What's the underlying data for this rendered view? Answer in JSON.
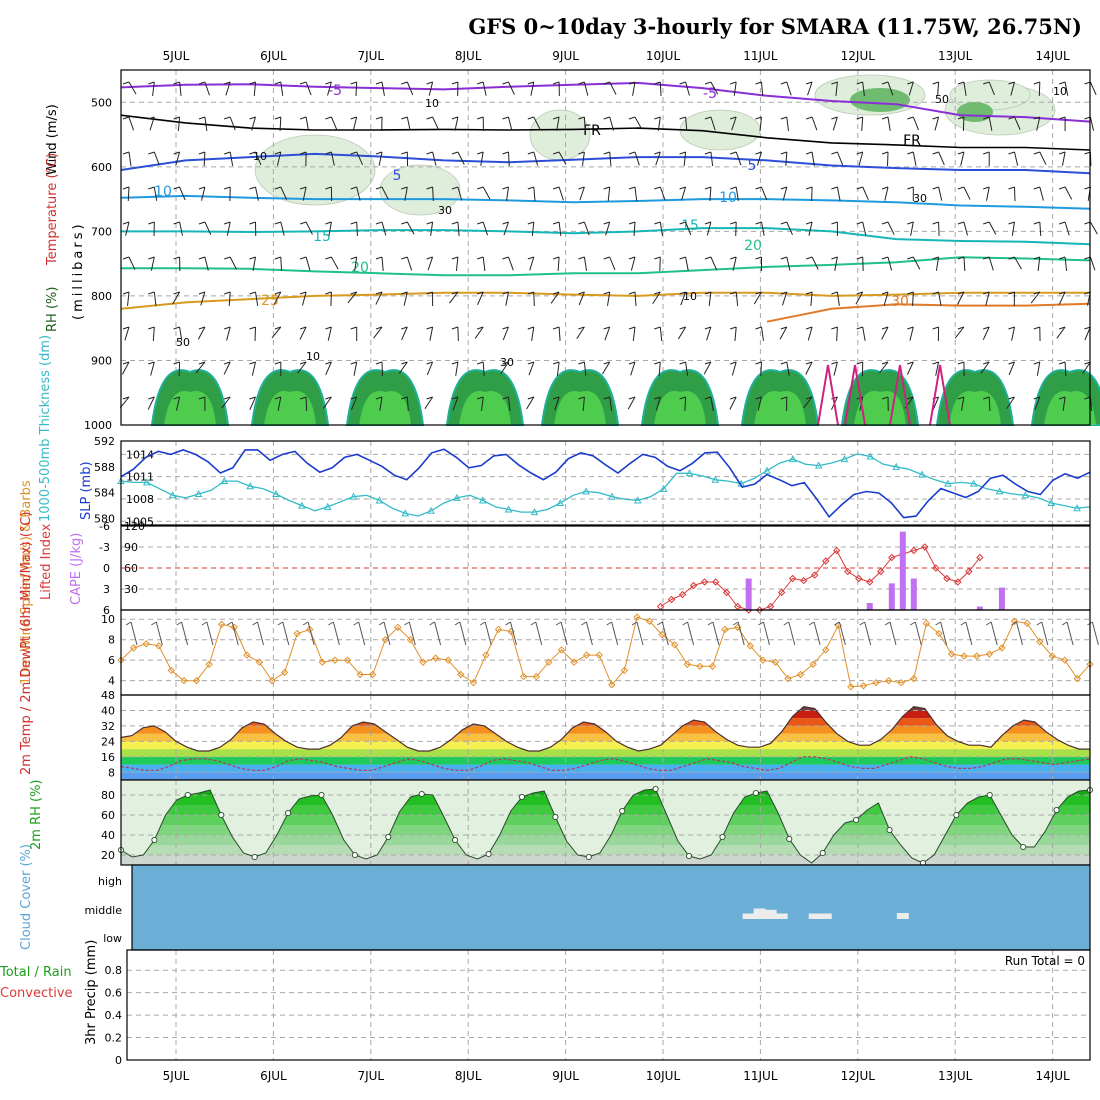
{
  "title": "GFS 0~10day 3-hourly for SMARA (11.75W, 26.75N)",
  "days": [
    "5JUL",
    "6JUL",
    "7JUL",
    "8JUL",
    "9JUL",
    "10JUL",
    "11JUL",
    "12JUL",
    "13JUL",
    "14JUL"
  ],
  "run_total_text": "Run Total = 0",
  "colors": {
    "frame": "#000000",
    "grid": "#a8a8a8",
    "cloud_bg": "#6baed6",
    "rh_fill": "#33b24d",
    "slp": "#1a3ccc",
    "thickness": "#33bbc8",
    "lifted": "#d93a3a",
    "cape": "#c070f0",
    "wind": "#e0902a",
    "rh2m_green": "#1ec81e"
  },
  "chart_data": [
    {
      "id": "profile",
      "type": "heatmap",
      "ylabel": "(millibars)",
      "side_labels": [
        "RH (%)",
        "Temperature (°C)",
        "Wind (m/s)"
      ],
      "y_ticks": [
        "500",
        "600",
        "700",
        "800",
        "900",
        "1000"
      ],
      "ylim": [
        1000,
        450
      ],
      "temperature_contour_labels": [
        "-5",
        "-5",
        "FR",
        "FR",
        "5",
        "5",
        "10",
        "10",
        "15",
        "15",
        "20",
        "20",
        "25",
        "30"
      ],
      "rh_contour_labels": [
        "10",
        "10",
        "30",
        "30",
        "30",
        "50",
        "50",
        "10",
        "10",
        "10"
      ],
      "temperature_contours_c": [
        {
          "level": "-5",
          "pressure_mb": [
            477,
            473,
            472,
            476,
            478,
            480,
            476,
            473,
            470,
            478,
            490,
            498,
            503,
            520,
            523,
            530
          ]
        },
        {
          "level": "FR",
          "pressure_mb": [
            520,
            532,
            540,
            543,
            543,
            542,
            543,
            542,
            540,
            544,
            555,
            563,
            566,
            570,
            570,
            574
          ]
        },
        {
          "level": "5",
          "pressure_mb": [
            605,
            590,
            585,
            580,
            584,
            590,
            593,
            589,
            585,
            585,
            590,
            598,
            602,
            605,
            605,
            610
          ]
        },
        {
          "level": "10",
          "pressure_mb": [
            648,
            645,
            648,
            650,
            650,
            650,
            652,
            655,
            653,
            650,
            650,
            652,
            655,
            660,
            662,
            665
          ]
        },
        {
          "level": "15",
          "pressure_mb": [
            700,
            700,
            701,
            700,
            698,
            698,
            700,
            703,
            700,
            695,
            695,
            700,
            712,
            715,
            716,
            720
          ]
        },
        {
          "level": "20",
          "pressure_mb": [
            757,
            757,
            758,
            762,
            765,
            768,
            768,
            765,
            765,
            760,
            755,
            752,
            748,
            740,
            742,
            745
          ]
        },
        {
          "level": "25",
          "pressure_mb": [
            820,
            810,
            805,
            800,
            798,
            795,
            795,
            798,
            800,
            795,
            795,
            800,
            798,
            795,
            795,
            795
          ]
        },
        {
          "level": "30",
          "pressure_mb": [
            null,
            null,
            null,
            null,
            null,
            null,
            null,
            null,
            null,
            null,
            840,
            820,
            813,
            815,
            815,
            812
          ]
        }
      ]
    },
    {
      "id": "slp-thickness",
      "type": "line",
      "left_ylabel": "1000-500mb Thickness (dm)",
      "right_ylabel": "SLP (mb)",
      "left_ticks": [
        "580",
        "584",
        "588",
        "592"
      ],
      "right_ticks": [
        "1005",
        "1008",
        "1011",
        "1014"
      ],
      "left_ylim": [
        579,
        592
      ],
      "right_ylim": [
        1004.5,
        1015.8
      ],
      "series": [
        {
          "name": "SLP (mb)",
          "axis": "right",
          "values": [
            1011.0,
            1012.0,
            1013.6,
            1014.4,
            1014.0,
            1014.6,
            1014.0,
            1013.0,
            1011.5,
            1012.2,
            1014.6,
            1014.6,
            1013.2,
            1014.0,
            1014.4,
            1012.8,
            1011.6,
            1012.2,
            1013.6,
            1014.0,
            1013.2,
            1012.4,
            1011.2,
            1010.6,
            1012.2,
            1014.2,
            1014.7,
            1013.6,
            1012.2,
            1012.5,
            1013.8,
            1014.0,
            1012.6,
            1011.5,
            1010.6,
            1011.6,
            1013.4,
            1014.2,
            1013.8,
            1012.6,
            1011.5,
            1012.8,
            1014.0,
            1013.6,
            1012.4,
            1011.8,
            1012.8,
            1014.2,
            1014.3,
            1012.2,
            1009.6,
            1010.0,
            1011.3,
            1010.6,
            1009.8,
            1010.2,
            1008.0,
            1005.6,
            1007.2,
            1008.6,
            1009.0,
            1008.8,
            1007.5,
            1005.5,
            1005.7,
            1007.8,
            1009.4,
            1008.8,
            1008.2,
            1009.0,
            1010.8,
            1011.2,
            1010.0,
            1009.0,
            1008.6,
            1010.5,
            1011.4,
            1010.8,
            1011.6
          ]
        },
        {
          "name": "1000-500mb Thickness (dm)",
          "axis": "left",
          "values": [
            585.8,
            585.6,
            585.6,
            584.6,
            583.6,
            583.2,
            583.8,
            584.4,
            585.8,
            585.8,
            585.0,
            584.6,
            583.8,
            582.8,
            582.0,
            581.2,
            581.8,
            582.6,
            583.4,
            583.6,
            582.8,
            581.6,
            580.8,
            580.4,
            581.2,
            582.4,
            583.2,
            583.6,
            582.8,
            581.8,
            581.4,
            581.0,
            581.0,
            581.4,
            582.4,
            583.6,
            584.2,
            584.0,
            583.4,
            583.0,
            582.8,
            583.4,
            584.6,
            587.0,
            587.0,
            586.6,
            586.0,
            585.8,
            585.4,
            586.2,
            587.4,
            588.6,
            589.2,
            588.4,
            588.2,
            588.6,
            589.2,
            590.0,
            589.6,
            588.4,
            588.0,
            587.6,
            586.8,
            586.0,
            585.4,
            585.6,
            585.4,
            584.6,
            584.2,
            583.8,
            583.6,
            583.2,
            582.4,
            582.0,
            581.6,
            581.8
          ]
        }
      ]
    },
    {
      "id": "li-cape",
      "type": "bar",
      "left_ylabel": "Lifted Index",
      "right_ylabel": "CAPE (J/kg)",
      "left_ticks": [
        "-6",
        "-3",
        "0",
        "3",
        "6"
      ],
      "right_ticks": [
        "30",
        "60",
        "90",
        "120"
      ],
      "right_ylim": [
        0,
        120
      ],
      "left_ylim": [
        6,
        -6
      ],
      "series": [
        {
          "name": "Lifted Index",
          "type": "line",
          "x_index": [
            49,
            50,
            51,
            52,
            53,
            54,
            55,
            56,
            57,
            58,
            59,
            60,
            61,
            62,
            63,
            64,
            65,
            66,
            67,
            68,
            69,
            70,
            71,
            72,
            73,
            74,
            75,
            76,
            77,
            78
          ],
          "values": [
            5.5,
            4.5,
            3.8,
            2.5,
            2.0,
            2.0,
            3.5,
            5.5,
            6.0,
            6.0,
            5.5,
            3.5,
            1.5,
            1.8,
            1.0,
            -1.0,
            -2.5,
            0.5,
            1.5,
            2.0,
            0.5,
            -1.5,
            -2.0,
            -2.5,
            -3.0,
            0.0,
            1.5,
            2.0,
            0.5,
            -1.5
          ]
        },
        {
          "name": "CAPE (J/kg)",
          "type": "bar",
          "x_index": [
            57,
            68,
            70,
            71,
            72,
            78,
            80
          ],
          "values": [
            45,
            10,
            38,
            112,
            45,
            5,
            32
          ]
        }
      ]
    },
    {
      "id": "wind10m",
      "type": "line",
      "ylabel": "10m Wind Speed (m/s) & Barbs",
      "y_ticks": [
        "4",
        "6",
        "8",
        "10"
      ],
      "ylim": [
        2.6,
        10.9
      ],
      "series": [
        {
          "name": "10m wind speed (m/s)",
          "values": [
            6.0,
            7.2,
            7.6,
            7.4,
            5.0,
            4.0,
            4.0,
            5.6,
            9.5,
            9.2,
            6.5,
            5.8,
            4.0,
            4.8,
            8.6,
            9.0,
            5.8,
            6.0,
            6.0,
            4.6,
            4.6,
            8.0,
            9.2,
            8.0,
            5.8,
            6.2,
            6.0,
            4.6,
            3.8,
            6.5,
            9.0,
            8.8,
            4.4,
            4.4,
            5.8,
            7.0,
            5.8,
            6.5,
            6.5,
            3.6,
            5.0,
            10.2,
            9.8,
            8.5,
            7.5,
            5.6,
            5.4,
            5.4,
            9.0,
            9.2,
            7.4,
            6.0,
            5.8,
            4.2,
            4.6,
            5.6,
            7.0,
            9.4,
            3.4,
            3.5,
            3.8,
            4.0,
            3.8,
            4.2,
            9.6,
            8.6,
            6.6,
            6.4,
            6.4,
            6.6,
            7.2,
            9.8,
            9.6,
            7.8,
            6.4,
            6.0,
            4.2,
            5.6
          ]
        }
      ]
    },
    {
      "id": "temp2m",
      "type": "area",
      "ylabel": "2m Temp / 2m DewPt (6hr Min/Max) (°C)",
      "y_ticks": [
        "8",
        "16",
        "24",
        "32",
        "40",
        "48"
      ],
      "ylim": [
        4,
        48
      ],
      "series": [
        {
          "name": "2m Temp",
          "values": [
            26,
            27,
            31,
            32,
            29,
            24,
            21,
            19,
            19,
            21,
            25,
            31,
            34,
            33,
            28,
            24,
            21,
            20,
            20,
            22,
            26,
            32,
            34,
            33,
            29,
            25,
            21,
            19,
            19,
            21,
            25,
            30,
            33,
            32,
            28,
            24,
            21,
            19,
            19,
            21,
            25,
            31,
            34,
            33,
            29,
            24,
            21,
            19,
            20,
            22,
            27,
            32,
            35,
            34,
            29,
            25,
            22,
            21,
            21,
            23,
            29,
            37,
            42,
            41,
            34,
            28,
            24,
            22,
            22,
            25,
            30,
            37,
            42,
            41,
            33,
            27,
            24,
            22,
            22,
            21,
            27,
            32,
            35,
            34,
            29,
            25,
            22,
            20,
            20
          ]
        },
        {
          "name": "2m DewPt",
          "values": [
            11,
            10,
            9,
            9,
            11,
            14,
            15,
            15,
            14,
            12,
            10,
            9,
            9,
            11,
            14,
            15,
            14,
            13,
            11,
            10,
            9,
            9,
            11,
            13,
            15,
            14,
            12,
            10,
            9,
            9,
            11,
            14,
            15,
            14,
            13,
            11,
            9,
            9,
            10,
            12,
            14,
            15,
            14,
            12,
            10,
            9,
            9,
            11,
            13,
            15,
            14,
            13,
            11,
            10,
            9,
            10,
            13,
            16,
            16,
            15,
            13,
            11,
            10,
            10,
            12,
            14,
            16,
            15,
            13,
            11,
            10,
            10,
            11,
            13,
            15,
            15,
            14,
            13,
            12,
            13,
            14,
            15
          ]
        }
      ]
    },
    {
      "id": "rh2m",
      "type": "area",
      "ylabel": "2m RH (%)",
      "y_ticks": [
        "20",
        "40",
        "60",
        "80"
      ],
      "ylim": [
        10,
        95
      ],
      "series": [
        {
          "name": "2m RH (%)",
          "values": [
            25,
            18,
            20,
            35,
            60,
            75,
            80,
            82,
            85,
            60,
            38,
            22,
            18,
            22,
            40,
            62,
            76,
            79,
            80,
            60,
            35,
            20,
            16,
            20,
            38,
            63,
            78,
            81,
            80,
            58,
            35,
            20,
            16,
            21,
            40,
            64,
            78,
            82,
            84,
            58,
            34,
            20,
            18,
            22,
            40,
            64,
            80,
            85,
            86,
            60,
            34,
            19,
            16,
            20,
            38,
            62,
            78,
            82,
            84,
            62,
            36,
            20,
            12,
            22,
            40,
            52,
            55,
            65,
            72,
            45,
            30,
            17,
            12,
            20,
            40,
            60,
            72,
            78,
            80,
            60,
            40,
            28,
            28,
            44,
            65,
            78,
            84,
            85
          ]
        }
      ]
    },
    {
      "id": "cloud",
      "type": "bar",
      "ylabel": "Cloud Cover (%)",
      "levels": [
        "high",
        "middle",
        "low"
      ],
      "patches": [
        {
          "x_index": [
            57,
            58,
            59,
            60
          ],
          "level": "middle",
          "percent": [
            10,
            30,
            25,
            10
          ]
        },
        {
          "x_index": [
            63,
            64
          ],
          "level": "middle",
          "percent": [
            10,
            10
          ]
        },
        {
          "x_index": [
            71
          ],
          "level": "middle",
          "percent": [
            12
          ]
        }
      ]
    },
    {
      "id": "precip",
      "type": "bar",
      "ylabel": "3hr Precip (mm)",
      "left_labels": [
        "Total / Rain",
        "Convective"
      ],
      "y_ticks": [
        "0",
        "0.2",
        "0.4",
        "0.6",
        "0.8"
      ],
      "ylim": [
        0,
        0.98
      ],
      "series": [
        {
          "name": "Total / Rain",
          "values": []
        },
        {
          "name": "Convective",
          "values": []
        }
      ]
    }
  ]
}
